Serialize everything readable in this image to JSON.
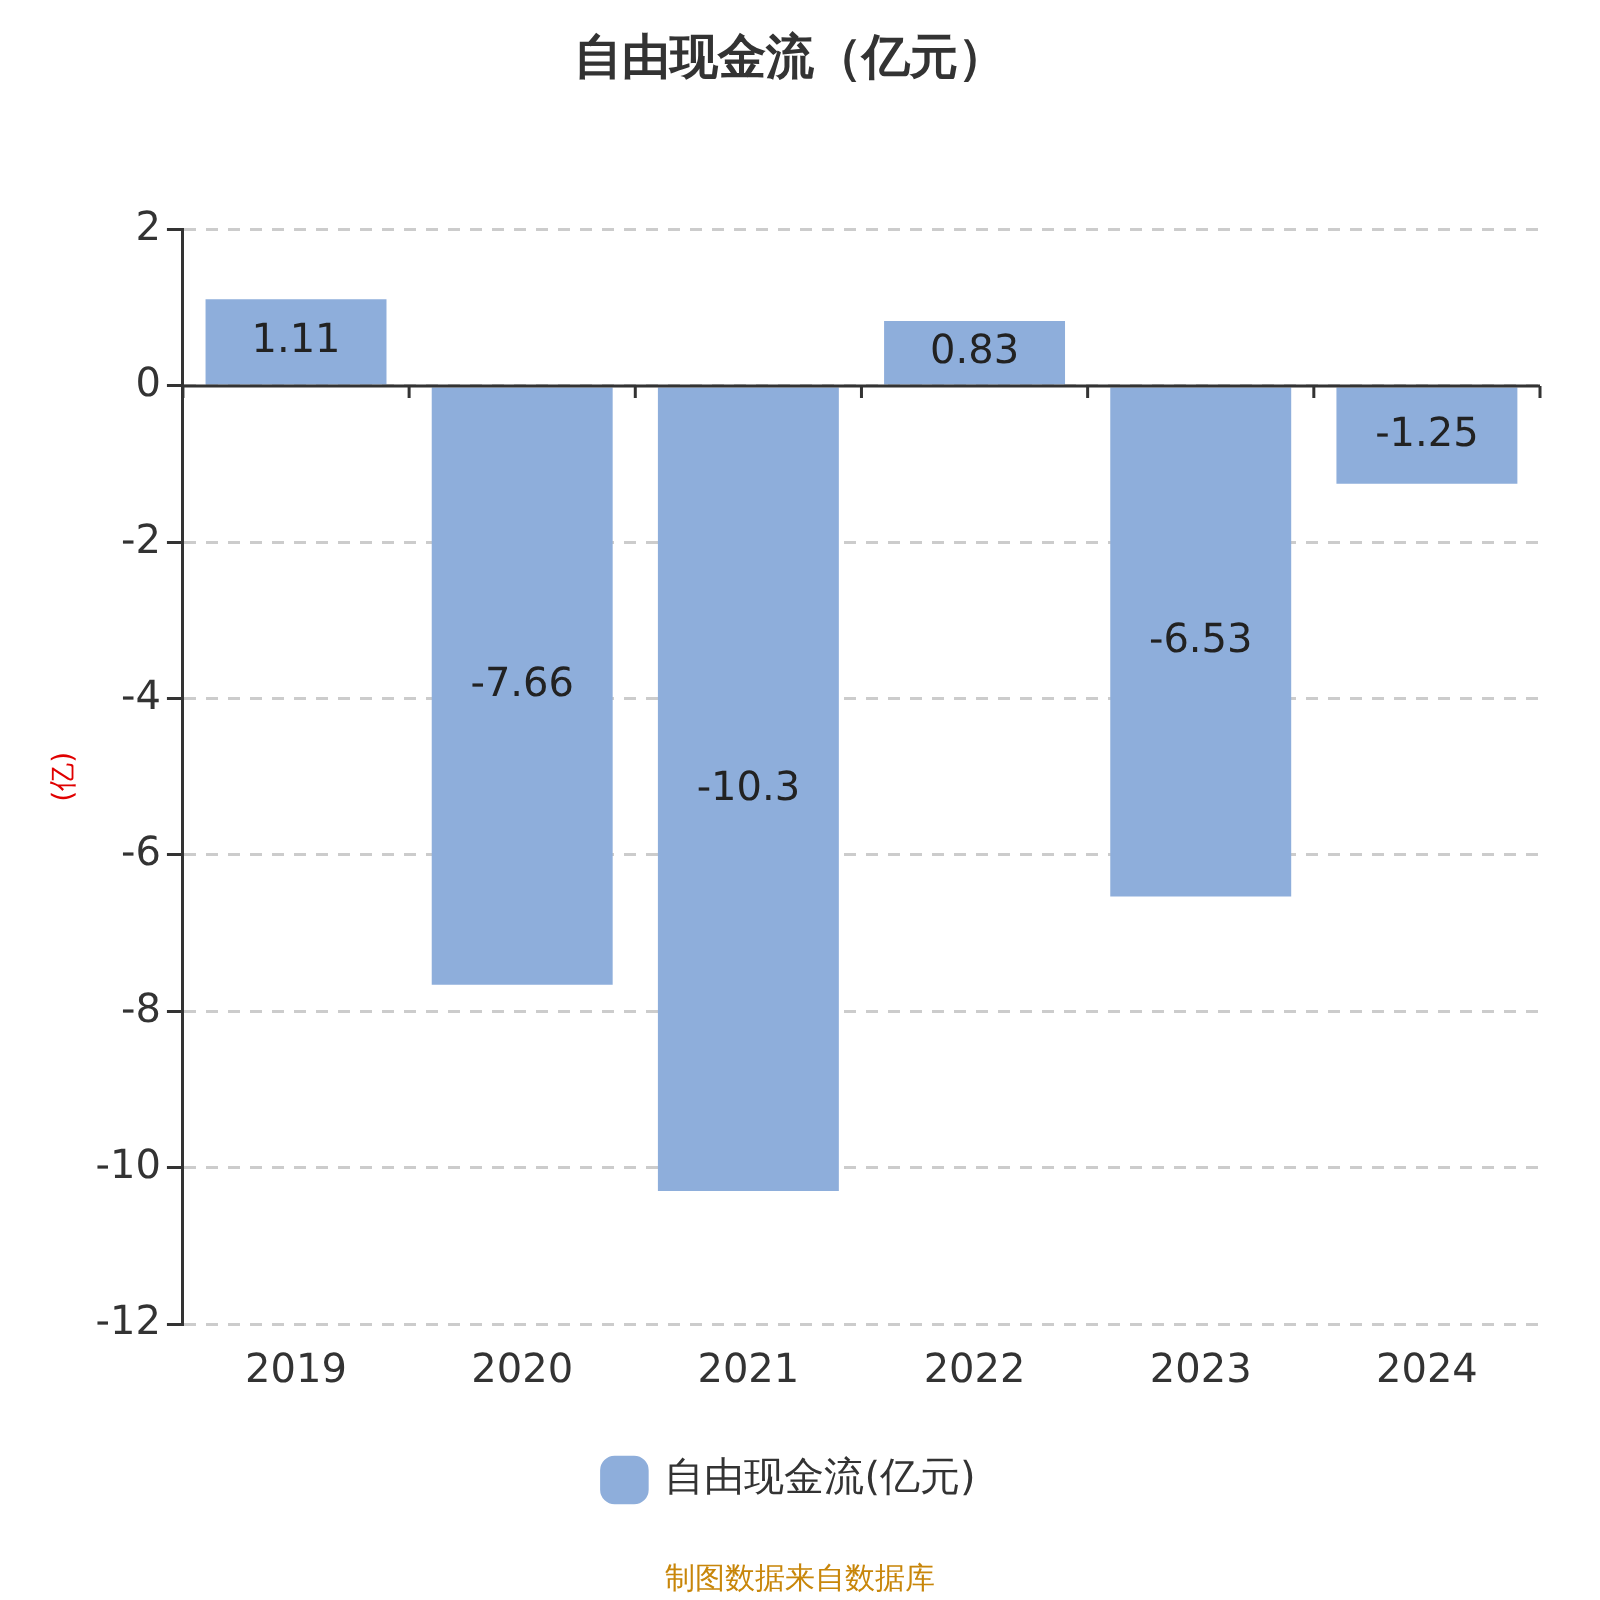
{
  "chart_data": {
    "type": "bar",
    "title": "自由现金流（亿元）",
    "ylabel": "(亿)",
    "categories": [
      "2019",
      "2020",
      "2021",
      "2022",
      "2023",
      "2024"
    ],
    "series": [
      {
        "name": "自由现金流(亿元)",
        "color": "#8eaedb",
        "values": [
          1.11,
          -7.66,
          -10.3,
          0.83,
          -6.53,
          -1.25
        ]
      }
    ],
    "ylim": [
      -12,
      2
    ],
    "yticks": [
      -12,
      -10,
      -8,
      -6,
      -4,
      -2,
      0,
      2
    ],
    "grid": "y",
    "legend": "bottom",
    "data_labels": true,
    "annotations": [
      "制图数据来自数据库"
    ]
  }
}
